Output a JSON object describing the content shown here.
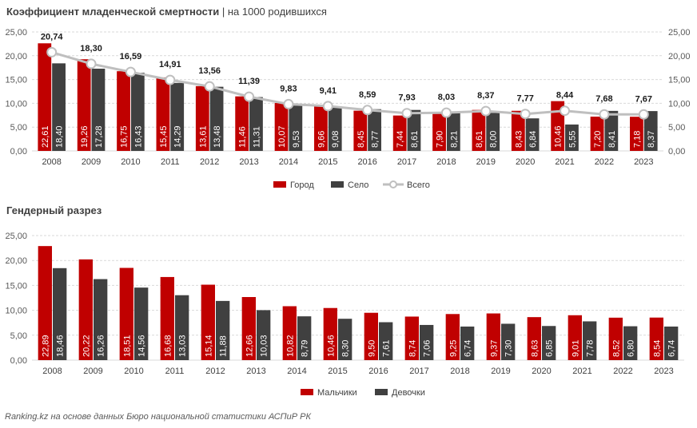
{
  "title": {
    "bold": "Коэффициент младенческой смертности",
    "rest": " | на 1000 родившихся"
  },
  "subtitle2": "Гендерный разрез",
  "source": "Ranking.kz на основе данных Бюро национальной статистики АСПиР РК",
  "colors": {
    "red": "#c00000",
    "dark": "#404040",
    "line": "#bfbfbf"
  },
  "chart_data": [
    {
      "type": "bar",
      "categories": [
        "2008",
        "2009",
        "2010",
        "2011",
        "2012",
        "2013",
        "2014",
        "2015",
        "2016",
        "2017",
        "2018",
        "2019",
        "2020",
        "2021",
        "2022",
        "2023"
      ],
      "series": [
        {
          "name": "Город",
          "values": [
            22.61,
            19.26,
            16.75,
            15.45,
            13.61,
            11.46,
            10.07,
            9.66,
            8.45,
            7.44,
            7.9,
            8.61,
            8.43,
            10.46,
            7.2,
            7.18
          ]
        },
        {
          "name": "Село",
          "values": [
            18.4,
            17.28,
            16.43,
            14.29,
            13.48,
            11.31,
            9.53,
            9.08,
            8.77,
            8.61,
            8.21,
            8.0,
            6.84,
            5.55,
            8.41,
            8.37
          ]
        },
        {
          "name": "Всего",
          "type": "line",
          "values": [
            20.74,
            18.3,
            16.59,
            14.91,
            13.56,
            11.39,
            9.83,
            9.41,
            8.59,
            7.93,
            8.03,
            8.37,
            7.77,
            8.44,
            7.68,
            7.67
          ]
        }
      ],
      "ylim": [
        0,
        25
      ],
      "yticks": [
        "0,00",
        "5,00",
        "10,00",
        "15,00",
        "20,00",
        "25,00"
      ],
      "secondary_axis": true,
      "legend": "bottom",
      "grid": true
    },
    {
      "type": "bar",
      "categories": [
        "2008",
        "2009",
        "2010",
        "2011",
        "2012",
        "2013",
        "2014",
        "2015",
        "2016",
        "2017",
        "2018",
        "2019",
        "2020",
        "2021",
        "2022",
        "2023"
      ],
      "series": [
        {
          "name": "Мальчики",
          "values": [
            22.89,
            20.22,
            18.51,
            16.68,
            15.14,
            12.66,
            10.82,
            10.46,
            9.5,
            8.74,
            9.25,
            9.37,
            8.63,
            9.01,
            8.52,
            8.54
          ]
        },
        {
          "name": "Девочки",
          "values": [
            18.46,
            16.26,
            14.56,
            13.03,
            11.88,
            10.03,
            8.79,
            8.3,
            7.61,
            7.06,
            6.74,
            7.3,
            6.85,
            7.78,
            6.8,
            6.74
          ]
        }
      ],
      "ylim": [
        0,
        25
      ],
      "yticks": [
        "0,00",
        "5,00",
        "10,00",
        "15,00",
        "20,00",
        "25,00"
      ],
      "legend": "bottom",
      "grid": true
    }
  ]
}
